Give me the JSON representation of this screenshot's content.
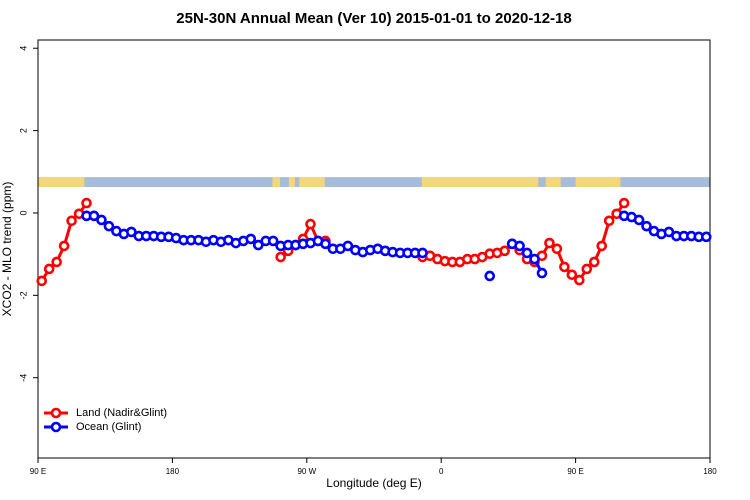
{
  "chart_data": {
    "type": "line",
    "title": "25N-30N Annual Mean (Ver 10)   2015-01-01 to 2020-12-18",
    "x_label": "Longitude (deg E)",
    "y_label": "XCO2 - MLO trend (ppm)",
    "xlim": [
      90,
      540
    ],
    "ylim": [
      -5.95,
      4.2
    ],
    "xticks": [
      {
        "value": 90,
        "label": "90 E"
      },
      180,
      {
        "value": 270,
        "label": "90 W"
      },
      {
        "value": 360,
        "label": "0"
      },
      {
        "value": 450,
        "label": "90 E"
      },
      {
        "value": 540,
        "label": "180"
      }
    ],
    "yticks": [
      -4,
      -2,
      0,
      2,
      4
    ],
    "legend": "bottomleft",
    "map_strip": {
      "ylim": [
        0.63,
        0.87
      ],
      "ocean_color": "#a7bcd8",
      "land_color": "#f4d77b",
      "land": [
        [
          90,
          121
        ],
        [
          247,
          252
        ],
        [
          258,
          262
        ],
        [
          265,
          282
        ],
        [
          347,
          425
        ],
        [
          430,
          440
        ],
        [
          450,
          480
        ]
      ]
    },
    "x": [
      92.5,
      97.5,
      102.5,
      107.5,
      112.5,
      117.5,
      122.5,
      127.5,
      132.5,
      137.5,
      142.5,
      147.5,
      152.5,
      157.5,
      162.5,
      167.5,
      172.5,
      177.5,
      182.5,
      187.5,
      192.5,
      197.5,
      202.5,
      207.5,
      212.5,
      217.5,
      222.5,
      227.5,
      232.5,
      237.5,
      242.5,
      247.5,
      252.5,
      257.5,
      262.5,
      267.5,
      272.5,
      277.5,
      282.5,
      287.5,
      292.5,
      297.5,
      302.5,
      307.5,
      312.5,
      317.5,
      322.5,
      327.5,
      332.5,
      337.5,
      342.5,
      347.5,
      352.5,
      357.5,
      362.5,
      367.5,
      372.5,
      377.5,
      382.5,
      387.5,
      392.5,
      397.5,
      402.5,
      407.5,
      412.5,
      417.5,
      422.5,
      427.5,
      432.5,
      437.5,
      442.5,
      447.5,
      452.5,
      457.5,
      462.5,
      467.5,
      472.5,
      477.5,
      482.5,
      487.5,
      492.5,
      497.5,
      502.5,
      507.5,
      512.5,
      517.5,
      522.5,
      527.5,
      532.5,
      537.5
    ],
    "series": [
      {
        "name": "Land (Nadir&Glint)",
        "color": "#ff0000",
        "values": [
          -1.65,
          -1.36,
          -1.19,
          -0.8,
          -0.19,
          -0.02,
          0.24,
          null,
          null,
          null,
          null,
          null,
          null,
          null,
          null,
          null,
          null,
          null,
          null,
          null,
          null,
          null,
          null,
          null,
          null,
          null,
          null,
          null,
          null,
          null,
          null,
          null,
          -1.07,
          -0.92,
          -0.78,
          -0.63,
          -0.27,
          -0.68,
          -0.68,
          null,
          null,
          null,
          null,
          null,
          null,
          null,
          null,
          null,
          null,
          null,
          null,
          -1.07,
          -1.04,
          -1.12,
          -1.17,
          -1.19,
          -1.19,
          -1.12,
          -1.12,
          -1.07,
          -0.99,
          -0.97,
          -0.92,
          -0.75,
          -0.9,
          -1.12,
          -1.19,
          -1.04,
          -0.73,
          -0.87,
          -1.31,
          -1.5,
          -1.63,
          -1.36,
          -1.19,
          -0.8,
          -0.19,
          -0.02,
          0.24,
          null,
          null,
          null,
          null,
          null,
          null,
          null,
          null,
          null,
          null,
          null
        ]
      },
      {
        "name": "Ocean (Glint)",
        "color": "#0000ff",
        "values": [
          null,
          null,
          null,
          null,
          null,
          null,
          -0.07,
          -0.07,
          -0.17,
          -0.32,
          -0.44,
          -0.51,
          -0.46,
          -0.56,
          -0.56,
          -0.56,
          -0.58,
          -0.58,
          -0.61,
          -0.66,
          -0.66,
          -0.66,
          -0.7,
          -0.66,
          -0.7,
          -0.66,
          -0.73,
          -0.68,
          -0.63,
          -0.78,
          -0.68,
          -0.68,
          -0.8,
          -0.78,
          -0.78,
          -0.75,
          -0.73,
          -0.68,
          -0.75,
          -0.87,
          -0.87,
          -0.8,
          -0.9,
          -0.95,
          -0.9,
          -0.87,
          -0.92,
          -0.95,
          -0.97,
          -0.97,
          -0.97,
          -0.97,
          null,
          null,
          null,
          null,
          null,
          null,
          null,
          null,
          -1.53,
          null,
          null,
          -0.75,
          -0.8,
          -0.97,
          -1.12,
          -1.46,
          null,
          null,
          null,
          null,
          null,
          null,
          null,
          null,
          null,
          null,
          -0.07,
          -0.1,
          -0.17,
          -0.32,
          -0.44,
          -0.51,
          -0.46,
          -0.56,
          -0.56,
          -0.56,
          -0.58,
          -0.58
        ]
      }
    ]
  }
}
